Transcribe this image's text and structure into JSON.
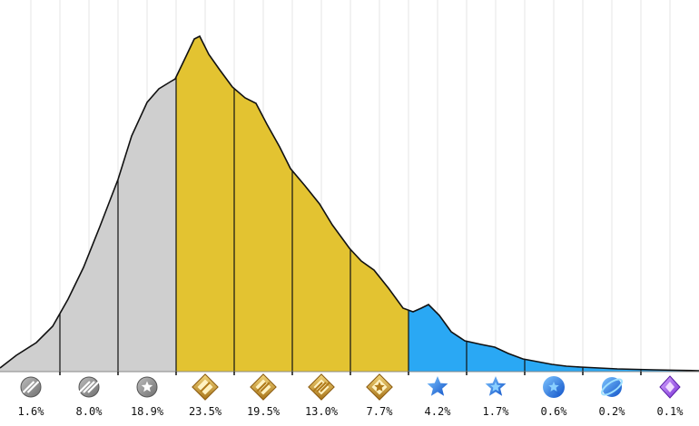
{
  "chart_data": {
    "type": "area",
    "title": "",
    "xlabel": "",
    "ylabel": "",
    "grid": true,
    "categories": [
      "Iron I",
      "Iron II",
      "Iron III",
      "Gold I",
      "Gold II",
      "Gold III",
      "Gold IV",
      "Platinum I",
      "Platinum II",
      "Platinum III",
      "Diamond",
      "Mythic"
    ],
    "values": [
      1.6,
      8.0,
      18.9,
      23.5,
      19.5,
      13.0,
      7.7,
      4.2,
      1.7,
      0.6,
      0.2,
      0.1
    ],
    "labels": [
      "1.6%",
      "8.0%",
      "18.9%",
      "23.5%",
      "19.5%",
      "13.0%",
      "7.7%",
      "4.2%",
      "1.7%",
      "0.6%",
      "0.2%",
      "0.1%"
    ],
    "icons": [
      "iron-1-icon",
      "iron-2-icon",
      "iron-3-star-icon",
      "gold-1-icon",
      "gold-2-icon",
      "gold-3-icon",
      "gold-4-star-icon",
      "platinum-1-star-icon",
      "platinum-2-star-icon",
      "platinum-3-star-icon",
      "diamond-icon",
      "mythic-icon"
    ],
    "tier_colors": {
      "iron": "#cfcfcf",
      "gold": "#e3c331",
      "platinum": "#2aa8f4",
      "diamond": "#2aa8f4",
      "mythic": "#2aa8f4"
    },
    "tiers": [
      "iron",
      "iron",
      "iron",
      "gold",
      "gold",
      "gold",
      "gold",
      "platinum",
      "platinum",
      "platinum",
      "diamond",
      "mythic"
    ]
  }
}
